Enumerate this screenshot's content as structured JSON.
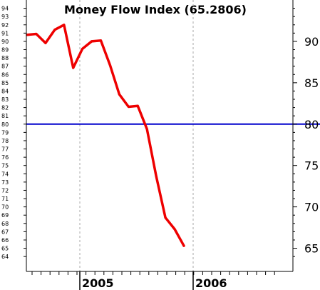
{
  "chart_data": {
    "type": "line",
    "title": "Money Flow Index (65.2806)",
    "xlabel": "",
    "ylabel": "",
    "x_year_labels": [
      "2005",
      "2006"
    ],
    "y_ticks_left": [
      64,
      65,
      66,
      67,
      68,
      69,
      70,
      71,
      72,
      73,
      74,
      75,
      76,
      77,
      78,
      79,
      80,
      81,
      82,
      83,
      84,
      85,
      86,
      87,
      88,
      89,
      90,
      91,
      92,
      93,
      94
    ],
    "y_ticks_right": [
      65,
      70,
      75,
      80,
      85,
      90
    ],
    "ylim": [
      62.2,
      95
    ],
    "reference_line": 80,
    "grid": "dashed vertical at year boundaries",
    "colors": {
      "series": "#ee0000",
      "reference": "#0000cc",
      "grid": "#aaaaaa"
    },
    "series": [
      {
        "name": "",
        "values": [
          90.8,
          90.9,
          89.8,
          91.4,
          92.0,
          86.8,
          89.1,
          90.0,
          90.1,
          87.1,
          83.6,
          82.1,
          82.2,
          79.4,
          73.7,
          68.7,
          67.3,
          65.3
        ]
      }
    ]
  }
}
